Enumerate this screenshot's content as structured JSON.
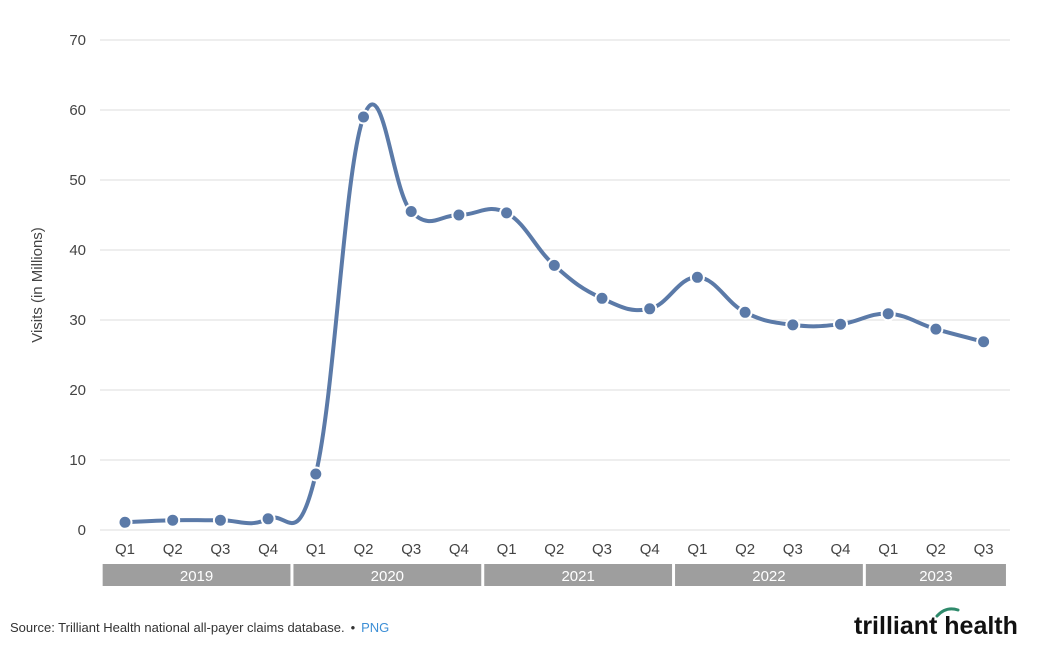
{
  "chart_data": {
    "type": "line",
    "title": "",
    "xlabel": "",
    "ylabel": "Visits (in Millions)",
    "ylim": [
      0,
      70
    ],
    "yticks": [
      0,
      10,
      20,
      30,
      40,
      50,
      60,
      70
    ],
    "grid": true,
    "categories": [
      "Q1",
      "Q2",
      "Q3",
      "Q4",
      "Q1",
      "Q2",
      "Q3",
      "Q4",
      "Q1",
      "Q2",
      "Q3",
      "Q4",
      "Q1",
      "Q2",
      "Q3",
      "Q4",
      "Q1",
      "Q2",
      "Q3"
    ],
    "year_groups": [
      {
        "label": "2019",
        "count": 4
      },
      {
        "label": "2020",
        "count": 4
      },
      {
        "label": "2021",
        "count": 4
      },
      {
        "label": "2022",
        "count": 4
      },
      {
        "label": "2023",
        "count": 3
      }
    ],
    "series": [
      {
        "values": [
          1.1,
          1.4,
          1.4,
          1.6,
          8.0,
          59.0,
          45.5,
          45.0,
          45.3,
          37.8,
          33.1,
          31.6,
          36.1,
          31.1,
          29.3,
          29.4,
          30.9,
          28.7,
          26.9
        ],
        "color": "#5b7aa8"
      }
    ]
  },
  "footer": {
    "source": "Source: Trilliant Health national all-payer claims database.",
    "separator": "•",
    "link": "PNG"
  },
  "logo": {
    "text": "trilliant health",
    "accent_color": "#2e8a6b"
  }
}
